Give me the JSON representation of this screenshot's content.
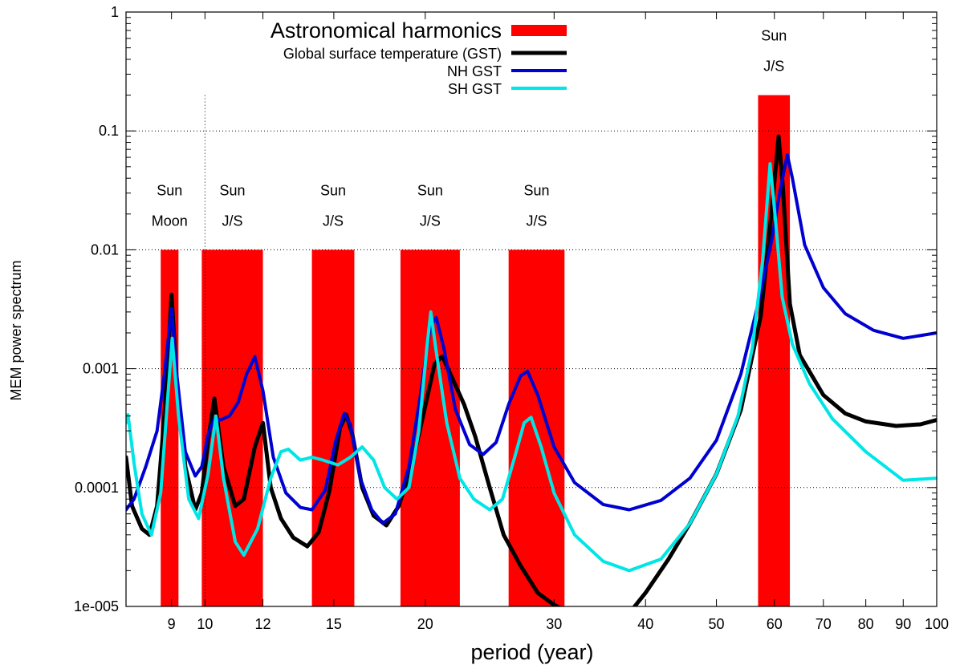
{
  "chart_data": {
    "type": "line",
    "xlabel": "period (year)",
    "ylabel": "MEM power spectrum",
    "x_scale": "log",
    "y_scale": "log",
    "xlim": [
      7.8,
      100
    ],
    "ylim": [
      1e-05,
      1
    ],
    "x_ticks": [
      9,
      10,
      12,
      15,
      20,
      30,
      40,
      50,
      60,
      70,
      80,
      90,
      100
    ],
    "x_tick_labels": [
      "9",
      "10",
      "12",
      "15",
      "20",
      "30",
      "40",
      "50",
      "60",
      "70",
      "80",
      "90",
      "100"
    ],
    "y_ticks": [
      1e-05,
      0.0001,
      0.001,
      0.01,
      0.1,
      1
    ],
    "y_tick_labels": [
      "1e-005",
      "0.0001",
      "0.001",
      "0.01",
      "0.1",
      "1"
    ],
    "grid": "dotted",
    "legend_position": "top-center",
    "harmonics": {
      "name": "Astronomical harmonics",
      "color": "#ff0000",
      "bands": [
        {
          "x0": 8.7,
          "x1": 9.2,
          "top": 0.01,
          "label": [
            "Sun",
            "Moon"
          ]
        },
        {
          "x0": 9.9,
          "x1": 12.0,
          "top": 0.01,
          "label": [
            "Sun",
            "J/S"
          ]
        },
        {
          "x0": 14.0,
          "x1": 16.0,
          "top": 0.01,
          "label": [
            "Sun",
            "J/S"
          ]
        },
        {
          "x0": 18.5,
          "x1": 22.3,
          "top": 0.01,
          "label": [
            "Sun",
            "J/S"
          ]
        },
        {
          "x0": 26.0,
          "x1": 31.0,
          "top": 0.01,
          "label": [
            "Sun",
            "J/S"
          ]
        },
        {
          "x0": 57.0,
          "x1": 63.0,
          "top": 0.2,
          "label": [
            "Sun",
            "J/S"
          ]
        }
      ]
    },
    "series": [
      {
        "name": "Global surface temperature (GST)",
        "color": "#000000",
        "width": 5,
        "points": [
          [
            7.8,
            0.00018
          ],
          [
            7.95,
            7e-05
          ],
          [
            8.2,
            4.5e-05
          ],
          [
            8.4,
            4e-05
          ],
          [
            8.6,
            7e-05
          ],
          [
            8.8,
            0.0004
          ],
          [
            9.0,
            0.0042
          ],
          [
            9.15,
            0.0008
          ],
          [
            9.4,
            0.00015
          ],
          [
            9.7,
            6.5e-05
          ],
          [
            9.9,
            9e-05
          ],
          [
            10.1,
            0.00025
          ],
          [
            10.3,
            0.00056
          ],
          [
            10.6,
            0.00015
          ],
          [
            11.0,
            7e-05
          ],
          [
            11.3,
            8e-05
          ],
          [
            11.7,
            0.00022
          ],
          [
            12.0,
            0.00035
          ],
          [
            12.3,
            0.0001
          ],
          [
            12.7,
            5.5e-05
          ],
          [
            13.2,
            3.8e-05
          ],
          [
            13.8,
            3.2e-05
          ],
          [
            14.3,
            4.2e-05
          ],
          [
            14.8,
            9.5e-05
          ],
          [
            15.3,
            0.00032
          ],
          [
            15.6,
            0.00041
          ],
          [
            15.9,
            0.00028
          ],
          [
            16.4,
            0.0001
          ],
          [
            17.0,
            5.8e-05
          ],
          [
            17.7,
            4.8e-05
          ],
          [
            18.4,
            7e-05
          ],
          [
            19.2,
            0.00016
          ],
          [
            19.9,
            0.00042
          ],
          [
            20.6,
            0.0011
          ],
          [
            21.1,
            0.00127
          ],
          [
            21.8,
            0.00082
          ],
          [
            22.6,
            0.0005
          ],
          [
            23.4,
            0.00027
          ],
          [
            24.5,
            0.0001
          ],
          [
            25.6,
            4e-05
          ],
          [
            27.0,
            2.2e-05
          ],
          [
            28.5,
            1.3e-05
          ],
          [
            30.0,
            1.03e-05
          ],
          [
            30.8,
            9.5e-06
          ],
          null,
          [
            38.5,
            9.7e-06
          ],
          [
            40.0,
            1.3e-05
          ],
          [
            43.0,
            2.5e-05
          ],
          [
            46.0,
            5e-05
          ],
          [
            50.0,
            0.00013
          ],
          [
            54.0,
            0.00045
          ],
          [
            57.5,
            0.0028
          ],
          [
            59.5,
            0.021
          ],
          [
            60.8,
            0.09
          ],
          [
            61.6,
            0.035
          ],
          [
            63.0,
            0.0035
          ],
          [
            65.0,
            0.0013
          ],
          [
            70.0,
            0.0006
          ],
          [
            75.0,
            0.00042
          ],
          [
            80.0,
            0.00036
          ],
          [
            88.0,
            0.00033
          ],
          [
            95.0,
            0.00034
          ],
          [
            100.0,
            0.00037
          ]
        ]
      },
      {
        "name": "NH GST",
        "color": "#0000d0",
        "width": 4,
        "points": [
          [
            7.8,
            6.5e-05
          ],
          [
            8.0,
            8e-05
          ],
          [
            8.3,
            0.00015
          ],
          [
            8.6,
            0.0003
          ],
          [
            8.8,
            0.0009
          ],
          [
            9.0,
            0.0032
          ],
          [
            9.15,
            0.0009
          ],
          [
            9.4,
            0.0002
          ],
          [
            9.7,
            0.000125
          ],
          [
            9.9,
            0.00015
          ],
          [
            10.1,
            0.00028
          ],
          [
            10.3,
            0.00038
          ],
          [
            10.5,
            0.00037
          ],
          [
            10.8,
            0.0004
          ],
          [
            11.1,
            0.00052
          ],
          [
            11.4,
            0.0009
          ],
          [
            11.7,
            0.00126
          ],
          [
            12.0,
            0.00065
          ],
          [
            12.4,
            0.00018
          ],
          [
            12.9,
            9e-05
          ],
          [
            13.5,
            6.8e-05
          ],
          [
            14.0,
            6.5e-05
          ],
          [
            14.6,
            9.5e-05
          ],
          [
            15.1,
            0.00025
          ],
          [
            15.5,
            0.00042
          ],
          [
            15.8,
            0.00034
          ],
          [
            16.3,
            0.00012
          ],
          [
            16.9,
            6.5e-05
          ],
          [
            17.5,
            5e-05
          ],
          [
            18.2,
            6e-05
          ],
          [
            19.0,
            0.00015
          ],
          [
            19.7,
            0.0006
          ],
          [
            20.3,
            0.0022
          ],
          [
            20.7,
            0.0027
          ],
          [
            21.2,
            0.0015
          ],
          [
            22.0,
            0.00045
          ],
          [
            23.0,
            0.00023
          ],
          [
            24.0,
            0.00019
          ],
          [
            25.0,
            0.00024
          ],
          [
            26.0,
            0.0005
          ],
          [
            27.0,
            0.00087
          ],
          [
            27.6,
            0.00095
          ],
          [
            28.5,
            0.0006
          ],
          [
            30.0,
            0.00022
          ],
          [
            32.0,
            0.00011
          ],
          [
            35.0,
            7.2e-05
          ],
          [
            38.0,
            6.5e-05
          ],
          [
            42.0,
            7.8e-05
          ],
          [
            46.0,
            0.00012
          ],
          [
            50.0,
            0.00025
          ],
          [
            54.0,
            0.0009
          ],
          [
            57.0,
            0.0035
          ],
          [
            59.5,
            0.012
          ],
          [
            61.0,
            0.03
          ],
          [
            62.5,
            0.063
          ],
          [
            63.5,
            0.04
          ],
          [
            66.0,
            0.011
          ],
          [
            70.0,
            0.0048
          ],
          [
            75.0,
            0.0029
          ],
          [
            82.0,
            0.0021
          ],
          [
            90.0,
            0.0018
          ],
          [
            100.0,
            0.002
          ]
        ]
      },
      {
        "name": "SH GST",
        "color": "#00e5e5",
        "width": 4,
        "points": [
          [
            7.8,
            0.00035
          ],
          [
            7.85,
            0.00041
          ],
          [
            8.0,
            0.00016
          ],
          [
            8.2,
            6e-05
          ],
          [
            8.45,
            4e-05
          ],
          [
            8.7,
            9e-05
          ],
          [
            8.9,
            0.0006
          ],
          [
            9.02,
            0.0018
          ],
          [
            9.2,
            0.0004
          ],
          [
            9.5,
            8e-05
          ],
          [
            9.8,
            5.5e-05
          ],
          [
            10.1,
            0.00013
          ],
          [
            10.35,
            0.0004
          ],
          [
            10.6,
            0.00012
          ],
          [
            11.0,
            3.5e-05
          ],
          [
            11.3,
            2.7e-05
          ],
          [
            11.8,
            4.5e-05
          ],
          [
            12.3,
            0.00012
          ],
          [
            12.7,
            0.0002
          ],
          [
            13.0,
            0.00021
          ],
          [
            13.5,
            0.00017
          ],
          [
            14.0,
            0.00018
          ],
          [
            14.5,
            0.00017
          ],
          [
            15.2,
            0.000155
          ],
          [
            15.8,
            0.00018
          ],
          [
            16.4,
            0.00022
          ],
          [
            17.0,
            0.00017
          ],
          [
            17.6,
            0.0001
          ],
          [
            18.3,
            8e-05
          ],
          [
            19.0,
            0.0001
          ],
          [
            19.6,
            0.0003
          ],
          [
            20.1,
            0.0015
          ],
          [
            20.35,
            0.003
          ],
          [
            20.7,
            0.0014
          ],
          [
            21.4,
            0.00035
          ],
          [
            22.3,
            0.00012
          ],
          [
            23.3,
            8e-05
          ],
          [
            24.5,
            6.5e-05
          ],
          [
            25.5,
            8e-05
          ],
          [
            26.5,
            0.00018
          ],
          [
            27.3,
            0.00035
          ],
          [
            27.9,
            0.00039
          ],
          [
            28.8,
            0.00022
          ],
          [
            30.0,
            9e-05
          ],
          [
            32.0,
            4e-05
          ],
          [
            35.0,
            2.4e-05
          ],
          [
            38.0,
            2e-05
          ],
          [
            42.0,
            2.5e-05
          ],
          [
            46.0,
            5e-05
          ],
          [
            50.0,
            0.00013
          ],
          [
            53.5,
            0.0004
          ],
          [
            56.0,
            0.0015
          ],
          [
            57.8,
            0.008
          ],
          [
            59.2,
            0.053
          ],
          [
            60.2,
            0.018
          ],
          [
            61.5,
            0.004
          ],
          [
            63.5,
            0.0016
          ],
          [
            67.0,
            0.00075
          ],
          [
            72.0,
            0.00038
          ],
          [
            80.0,
            0.0002
          ],
          [
            90.0,
            0.000115
          ],
          [
            100.0,
            0.00012
          ]
        ]
      }
    ]
  }
}
